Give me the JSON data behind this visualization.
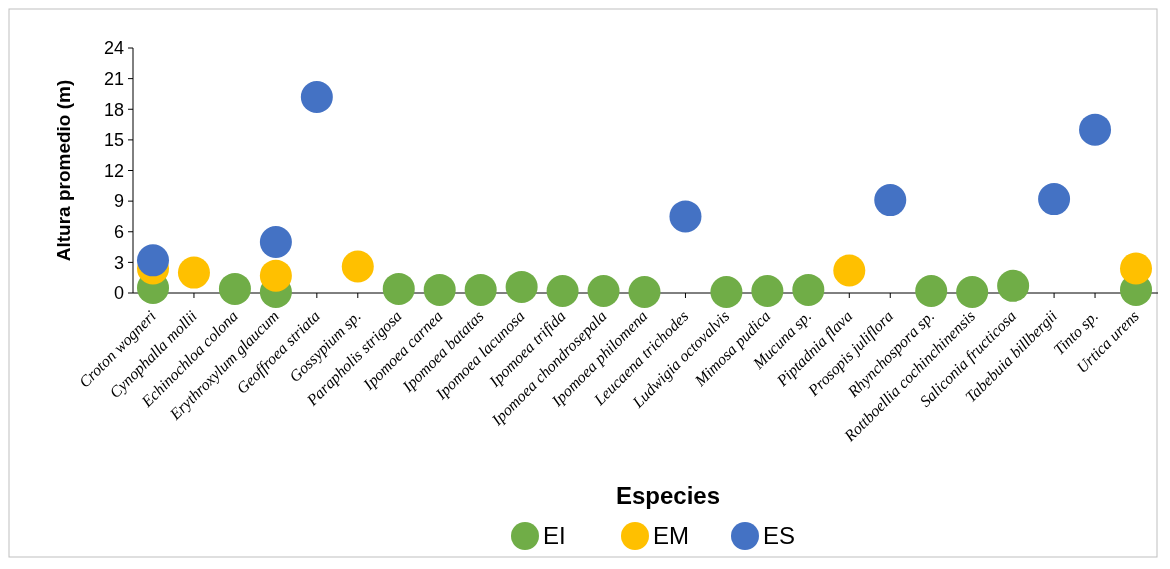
{
  "chart_data": {
    "type": "scatter",
    "xlabel": "Especies",
    "ylabel": "Altura promedio (m)",
    "categories": [
      "Croton wogneri",
      "Cynophalla mollii",
      "Echinochloa colona",
      "Erythroxylum glaucum",
      "Geoffroea striata",
      "Gossypium sp.",
      "Parapholis strigosa",
      "Ipomoea carnea",
      "Ipomoea batatas",
      "Ipomoea lacunosa",
      "Ipomoea trifida",
      "Ipomoea chondrosepala",
      "Ipomoea philomena",
      "Leucaena trichodes",
      "Ludwigia octovalvis",
      "Mimosa pudica",
      "Mucuna sp.",
      "Piptadnia flava",
      "Prosopis juliflora",
      "Rhynchospora sp.",
      "Rottboellia cochinchinensis",
      "Saliconia fructicosa",
      "Tabebuia billbergii",
      "Tinto sp.",
      "Urtica urens"
    ],
    "series": [
      {
        "name": "EI",
        "color": "#70ad47",
        "values": [
          0.5,
          null,
          0.4,
          0.1,
          null,
          null,
          0.4,
          0.3,
          0.3,
          0.6,
          0.2,
          0.2,
          0.1,
          null,
          0.1,
          0.2,
          0.3,
          null,
          null,
          0.2,
          0.1,
          0.7,
          null,
          null,
          0.3
        ]
      },
      {
        "name": "EM",
        "color": "#ffc000",
        "values": [
          2.4,
          2.0,
          null,
          1.7,
          null,
          2.6,
          null,
          null,
          null,
          null,
          null,
          null,
          null,
          null,
          null,
          null,
          null,
          2.2,
          null,
          null,
          null,
          null,
          null,
          null,
          2.4
        ]
      },
      {
        "name": "ES",
        "color": "#4472c4",
        "values": [
          3.2,
          null,
          null,
          5.0,
          19.2,
          null,
          null,
          null,
          null,
          null,
          null,
          null,
          null,
          7.5,
          null,
          null,
          null,
          null,
          9.1,
          null,
          null,
          null,
          9.2,
          16.0,
          null
        ]
      }
    ],
    "ylim": [
      0,
      24
    ],
    "yticks": [
      0,
      3,
      6,
      9,
      12,
      15,
      18,
      21,
      24
    ],
    "grid": false,
    "legend": "bottom",
    "marker": "circle"
  }
}
